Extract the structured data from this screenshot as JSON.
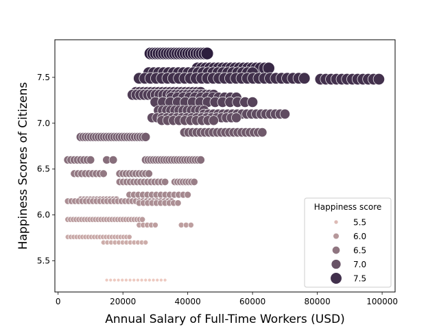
{
  "chart_data": {
    "type": "scatter",
    "title": "",
    "xlabel": "Annual Salary of Full-Time Workers (USD)",
    "ylabel": "Happiness Scores of Citizens",
    "xlim": [
      -1000,
      104000
    ],
    "ylim": [
      5.16,
      7.91
    ],
    "x_ticks": [
      0,
      20000,
      40000,
      60000,
      80000,
      100000
    ],
    "x_tick_labels": [
      "0",
      "20000",
      "40000",
      "60000",
      "80000",
      "100000"
    ],
    "y_ticks": [
      5.5,
      6.0,
      6.5,
      7.0,
      7.5
    ],
    "y_tick_labels": [
      "5.5",
      "6.0",
      "6.5",
      "7.0",
      "7.5"
    ],
    "grid": false,
    "hue": "Happiness score",
    "size": "Happiness score",
    "color_range": [
      "#edc9c0",
      "#2d1e3e"
    ],
    "size_range_px": [
      2.5,
      9
    ],
    "legend": {
      "title": "Happiness score",
      "placement": "lower-right",
      "entries": [
        {
          "label": "5.5",
          "value": 5.5
        },
        {
          "label": "6.0",
          "value": 6.0
        },
        {
          "label": "6.5",
          "value": 6.5
        },
        {
          "label": "7.0",
          "value": 7.0
        },
        {
          "label": "7.5",
          "value": 7.5
        }
      ]
    },
    "clusters": [
      {
        "y": 7.76,
        "x_min": 28500,
        "x_max": 46000,
        "n": 22
      },
      {
        "y": 7.6,
        "x_min": 43000,
        "x_max": 65000,
        "n": 18
      },
      {
        "y": 7.55,
        "x_min": 28000,
        "x_max": 60000,
        "n": 22
      },
      {
        "y": 7.49,
        "x_min": 25000,
        "x_max": 76000,
        "n": 30
      },
      {
        "y": 7.48,
        "x_min": 81000,
        "x_max": 99000,
        "n": 12
      },
      {
        "y": 7.34,
        "x_min": 24000,
        "x_max": 44000,
        "n": 18
      },
      {
        "y": 7.31,
        "x_min": 23000,
        "x_max": 48000,
        "n": 22
      },
      {
        "y": 7.28,
        "x_min": 35000,
        "x_max": 55000,
        "n": 12
      },
      {
        "y": 7.23,
        "x_min": 30000,
        "x_max": 60000,
        "n": 14
      },
      {
        "y": 7.14,
        "x_min": 31000,
        "x_max": 45000,
        "n": 12
      },
      {
        "y": 7.1,
        "x_min": 45000,
        "x_max": 70000,
        "n": 18
      },
      {
        "y": 7.06,
        "x_min": 29000,
        "x_max": 55000,
        "n": 18
      },
      {
        "y": 7.03,
        "x_min": 32000,
        "x_max": 48000,
        "n": 10
      },
      {
        "y": 6.9,
        "x_min": 39000,
        "x_max": 63000,
        "n": 20
      },
      {
        "y": 6.85,
        "x_min": 7000,
        "x_max": 27000,
        "n": 26
      },
      {
        "y": 6.6,
        "x_min": 3000,
        "x_max": 10000,
        "n": 8
      },
      {
        "y": 6.6,
        "x_min": 15000,
        "x_max": 17000,
        "n": 2
      },
      {
        "y": 6.6,
        "x_min": 27000,
        "x_max": 44000,
        "n": 22
      },
      {
        "y": 6.45,
        "x_min": 5000,
        "x_max": 14000,
        "n": 9
      },
      {
        "y": 6.45,
        "x_min": 19000,
        "x_max": 28000,
        "n": 10
      },
      {
        "y": 6.36,
        "x_min": 19000,
        "x_max": 33000,
        "n": 14
      },
      {
        "y": 6.36,
        "x_min": 36000,
        "x_max": 42000,
        "n": 8
      },
      {
        "y": 6.22,
        "x_min": 22000,
        "x_max": 40000,
        "n": 14
      },
      {
        "y": 6.17,
        "x_min": 7000,
        "x_max": 18000,
        "n": 12
      },
      {
        "y": 6.15,
        "x_min": 3000,
        "x_max": 35000,
        "n": 30
      },
      {
        "y": 6.13,
        "x_min": 25000,
        "x_max": 37000,
        "n": 10
      },
      {
        "y": 5.95,
        "x_min": 3000,
        "x_max": 26000,
        "n": 28
      },
      {
        "y": 5.89,
        "x_min": 25000,
        "x_max": 30000,
        "n": 5
      },
      {
        "y": 5.89,
        "x_min": 38000,
        "x_max": 41000,
        "n": 3
      },
      {
        "y": 5.76,
        "x_min": 3000,
        "x_max": 22000,
        "n": 22
      },
      {
        "y": 5.7,
        "x_min": 14000,
        "x_max": 27000,
        "n": 12
      },
      {
        "y": 5.29,
        "x_min": 15000,
        "x_max": 33000,
        "n": 16
      }
    ]
  }
}
